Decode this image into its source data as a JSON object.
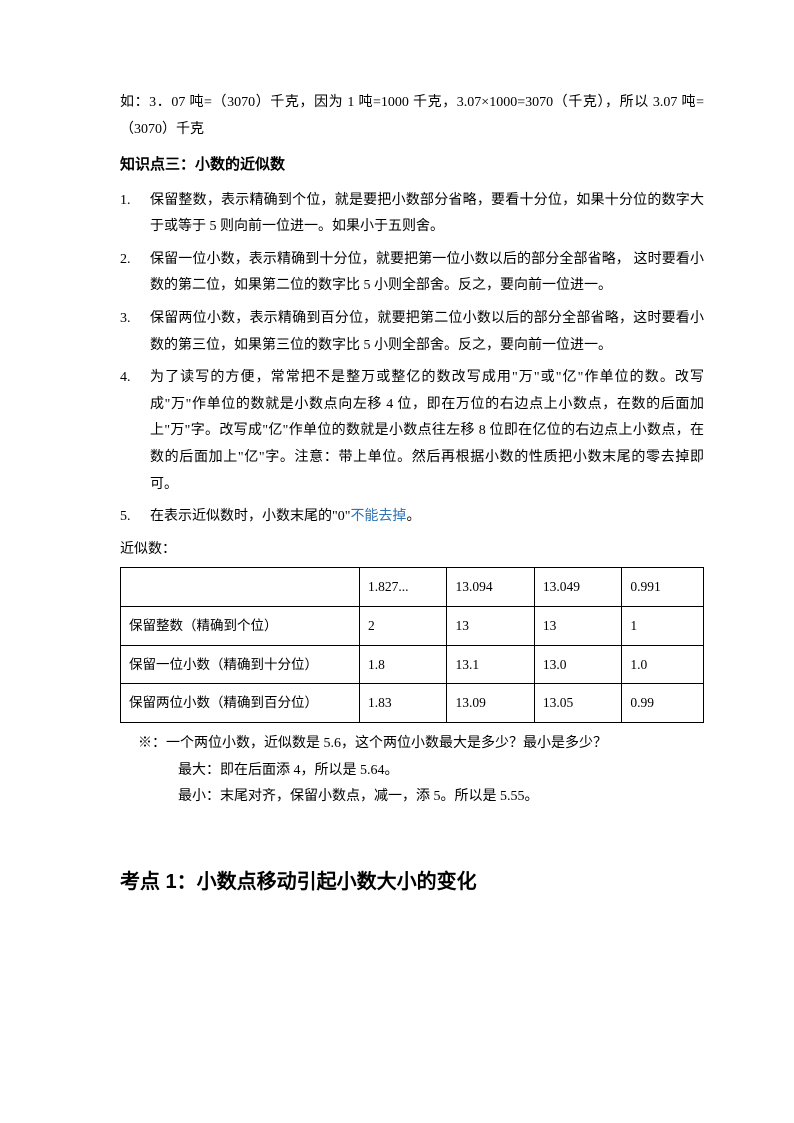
{
  "example_para1": "如：3．07 吨=（3070）千克，因为 1 吨=1000 千克，3.07×1000=3070（千克），所以 3.07 吨=（3070）千克",
  "section3_title": "知识点三：小数的近似数",
  "list": [
    "保留整数，表示精确到个位，就是要把小数部分省略，要看十分位，如果十分位的数字大于或等于 5 则向前一位进一。如果小于五则舍。",
    "保留一位小数，表示精确到十分位，就要把第一位小数以后的部分全部省略， 这时要看小数的第二位，如果第二位的数字比 5 小则全部舍。反之，要向前一位进一。",
    "保留两位小数，表示精确到百分位，就要把第二位小数以后的部分全部省略，这时要看小数的第三位，如果第三位的数字比 5 小则全部舍。反之，要向前一位进一。",
    "为了读写的方便，常常把不是整万或整亿的数改写成用\"万\"或\"亿\"作单位的数。改写成\"万\"作单位的数就是小数点向左移 4 位，即在万位的右边点上小数点，在数的后面加上\"万\"字。改写成\"亿\"作单位的数就是小数点往左移 8 位即在亿位的右边点上小数点，在数的后面加上\"亿\"字。注意：带上单位。然后再根据小数的性质把小数末尾的零去掉即可。"
  ],
  "item5_pre": "在表示近似数时，小数末尾的\"0\"",
  "item5_hl": "不能去掉",
  "item5_post": "。",
  "table_label": "近似数：",
  "table": {
    "columns": [
      "",
      "1.827...",
      "13.094",
      "13.049",
      "0.991"
    ],
    "rows": [
      [
        "保留整数（精确到个位）",
        "2",
        "13",
        "13",
        "1"
      ],
      [
        "保留一位小数（精确到十分位）",
        "1.8",
        "13.1",
        "13.0",
        "1.0"
      ],
      [
        "保留两位小数（精确到百分位）",
        "1.83",
        "13.09",
        "13.05",
        "0.99"
      ]
    ]
  },
  "note_q": "※：一个两位小数，近似数是 5.6，这个两位小数最大是多少？最小是多少？",
  "note_a1": "最大：即在后面添 4，所以是 5.64。",
  "note_a2": "最小：末尾对齐，保留小数点，减一，添 5。所以是 5.55。",
  "kp1": "考点 1：小数点移动引起小数大小的变化"
}
